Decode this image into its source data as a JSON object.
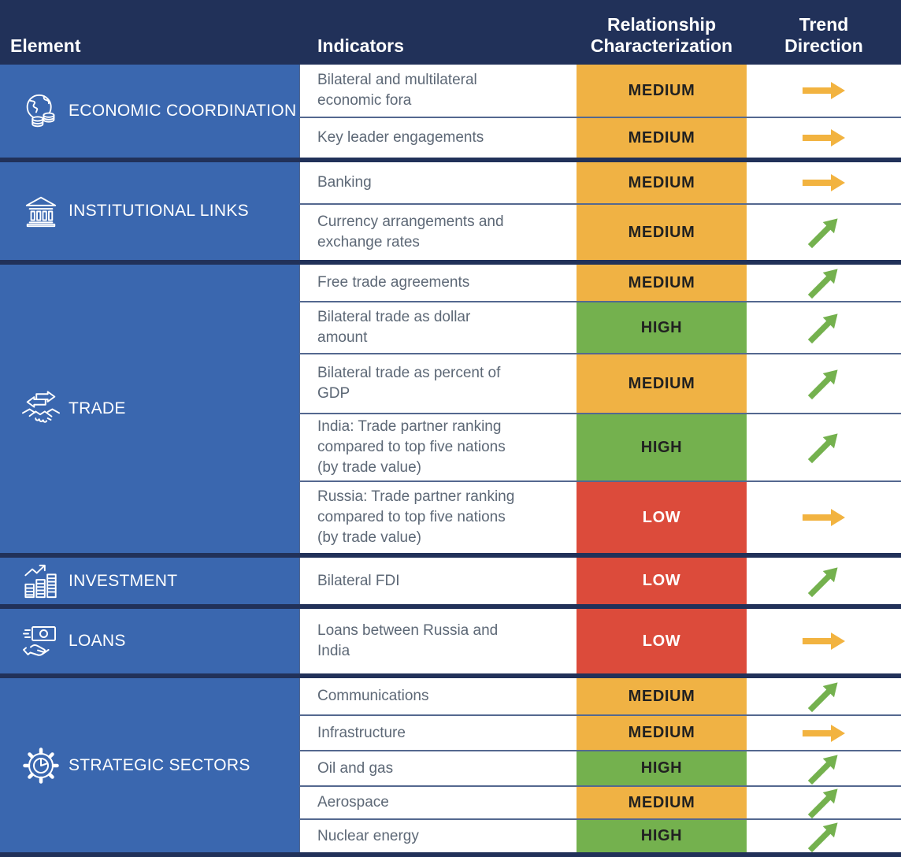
{
  "header": {
    "columns": [
      {
        "label": "Element"
      },
      {
        "label": "Indicators"
      },
      {
        "label": "Relationship\nCharacterization"
      },
      {
        "label": "Trend\nDirection"
      }
    ]
  },
  "colors": {
    "header_navy": "#213159",
    "element_blue": "#3A67AF",
    "separator_thin": "#54688F",
    "indicator_text": "#5D6876",
    "arrow_flat": "#F2B340",
    "arrow_up": "#74B14E"
  },
  "levels": {
    "MEDIUM": {
      "bg": "#F0B244",
      "fg": "#212121"
    },
    "HIGH": {
      "bg": "#74B14E",
      "fg": "#212121"
    },
    "LOW": {
      "bg": "#DC4B3B",
      "fg": "#FFFFFF"
    }
  },
  "groups": [
    {
      "element": "ECONOMIC COORDINATION",
      "icon": "globe-coins-icon",
      "rows": [
        {
          "indicator": "Bilateral and multilateral\neconomic fora",
          "level": "MEDIUM",
          "trend": "flat"
        },
        {
          "indicator": "Key leader engagements",
          "level": "MEDIUM",
          "trend": "flat"
        }
      ]
    },
    {
      "element": "INSTITUTIONAL LINKS",
      "icon": "bank-icon",
      "rows": [
        {
          "indicator": "Banking",
          "level": "MEDIUM",
          "trend": "flat"
        },
        {
          "indicator": "Currency arrangements and\nexchange rates",
          "level": "MEDIUM",
          "trend": "up"
        }
      ]
    },
    {
      "element": "TRADE",
      "icon": "trade-handshake-icon",
      "rows": [
        {
          "indicator": "Free trade agreements",
          "level": "MEDIUM",
          "trend": "up"
        },
        {
          "indicator": "Bilateral trade as dollar\namount",
          "level": "HIGH",
          "trend": "up"
        },
        {
          "indicator": "Bilateral trade as percent of\nGDP",
          "level": "MEDIUM",
          "trend": "up"
        },
        {
          "indicator": "India: Trade partner ranking\ncompared to top five nations\n(by trade value)",
          "level": "HIGH",
          "trend": "up"
        },
        {
          "indicator": "Russia: Trade partner ranking\ncompared to top five nations\n(by trade value)",
          "level": "LOW",
          "trend": "flat"
        }
      ]
    },
    {
      "element": "INVESTMENT",
      "icon": "investment-chart-icon",
      "rows": [
        {
          "indicator": "Bilateral FDI",
          "level": "LOW",
          "trend": "up"
        }
      ]
    },
    {
      "element": "LOANS",
      "icon": "loan-banknote-hand-icon",
      "rows": [
        {
          "indicator": "Loans between Russia and\nIndia",
          "level": "LOW",
          "trend": "flat"
        }
      ]
    },
    {
      "element": "STRATEGIC SECTORS",
      "icon": "gear-pie-icon",
      "rows": [
        {
          "indicator": "Communications",
          "level": "MEDIUM",
          "trend": "up"
        },
        {
          "indicator": "Infrastructure",
          "level": "MEDIUM",
          "trend": "flat"
        },
        {
          "indicator": "Oil and gas",
          "level": "HIGH",
          "trend": "up"
        },
        {
          "indicator": "Aerospace",
          "level": "MEDIUM",
          "trend": "up"
        },
        {
          "indicator": "Nuclear energy",
          "level": "HIGH",
          "trend": "up"
        }
      ]
    }
  ],
  "chart_data": {
    "type": "table",
    "columns": [
      "Element",
      "Indicators",
      "Relationship Characterization",
      "Trend Direction"
    ],
    "rows": [
      [
        "ECONOMIC COORDINATION",
        "Bilateral and multilateral economic fora",
        "MEDIUM",
        "stable"
      ],
      [
        "ECONOMIC COORDINATION",
        "Key leader engagements",
        "MEDIUM",
        "stable"
      ],
      [
        "INSTITUTIONAL LINKS",
        "Banking",
        "MEDIUM",
        "stable"
      ],
      [
        "INSTITUTIONAL LINKS",
        "Currency arrangements and exchange rates",
        "MEDIUM",
        "increasing"
      ],
      [
        "TRADE",
        "Free trade agreements",
        "MEDIUM",
        "increasing"
      ],
      [
        "TRADE",
        "Bilateral trade as dollar amount",
        "HIGH",
        "increasing"
      ],
      [
        "TRADE",
        "Bilateral trade as percent of GDP",
        "MEDIUM",
        "increasing"
      ],
      [
        "TRADE",
        "India: Trade partner ranking compared to top five nations (by trade value)",
        "HIGH",
        "increasing"
      ],
      [
        "TRADE",
        "Russia: Trade partner ranking compared to top five nations (by trade value)",
        "LOW",
        "stable"
      ],
      [
        "INVESTMENT",
        "Bilateral FDI",
        "LOW",
        "increasing"
      ],
      [
        "LOANS",
        "Loans between Russia and India",
        "LOW",
        "stable"
      ],
      [
        "STRATEGIC SECTORS",
        "Communications",
        "MEDIUM",
        "increasing"
      ],
      [
        "STRATEGIC SECTORS",
        "Infrastructure",
        "MEDIUM",
        "stable"
      ],
      [
        "STRATEGIC SECTORS",
        "Oil and gas",
        "HIGH",
        "increasing"
      ],
      [
        "STRATEGIC SECTORS",
        "Aerospace",
        "MEDIUM",
        "increasing"
      ],
      [
        "STRATEGIC SECTORS",
        "Nuclear energy",
        "HIGH",
        "increasing"
      ]
    ],
    "legend": {
      "MEDIUM": "orange",
      "HIGH": "green",
      "LOW": "red",
      "stable": "yellow right arrow",
      "increasing": "green diagonal up-right arrow"
    }
  }
}
